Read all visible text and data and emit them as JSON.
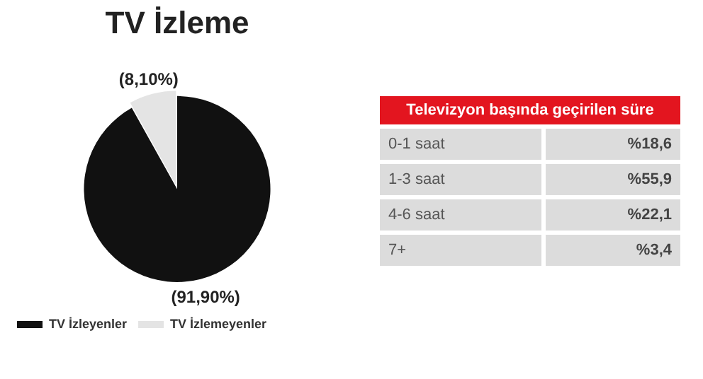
{
  "chart_data": [
    {
      "type": "pie",
      "title": "TV İzleme",
      "categories": [
        "TV İzleyenler",
        "TV İzlemeyenler"
      ],
      "values": [
        91.9,
        8.1
      ],
      "colors": [
        "#111111",
        "#e4e4e4"
      ],
      "value_labels": [
        "(91,90%)",
        "(8,10%)"
      ],
      "legend": "bottom left"
    },
    {
      "type": "other",
      "title": "Televizyon başında geçirilen süre",
      "categories": [
        "0-1 saat",
        "1-3 saat",
        "4-6 saat",
        "7+"
      ],
      "value_labels": [
        "%18,6",
        "%55,9",
        "%22,1",
        "%3,4"
      ]
    }
  ]
}
